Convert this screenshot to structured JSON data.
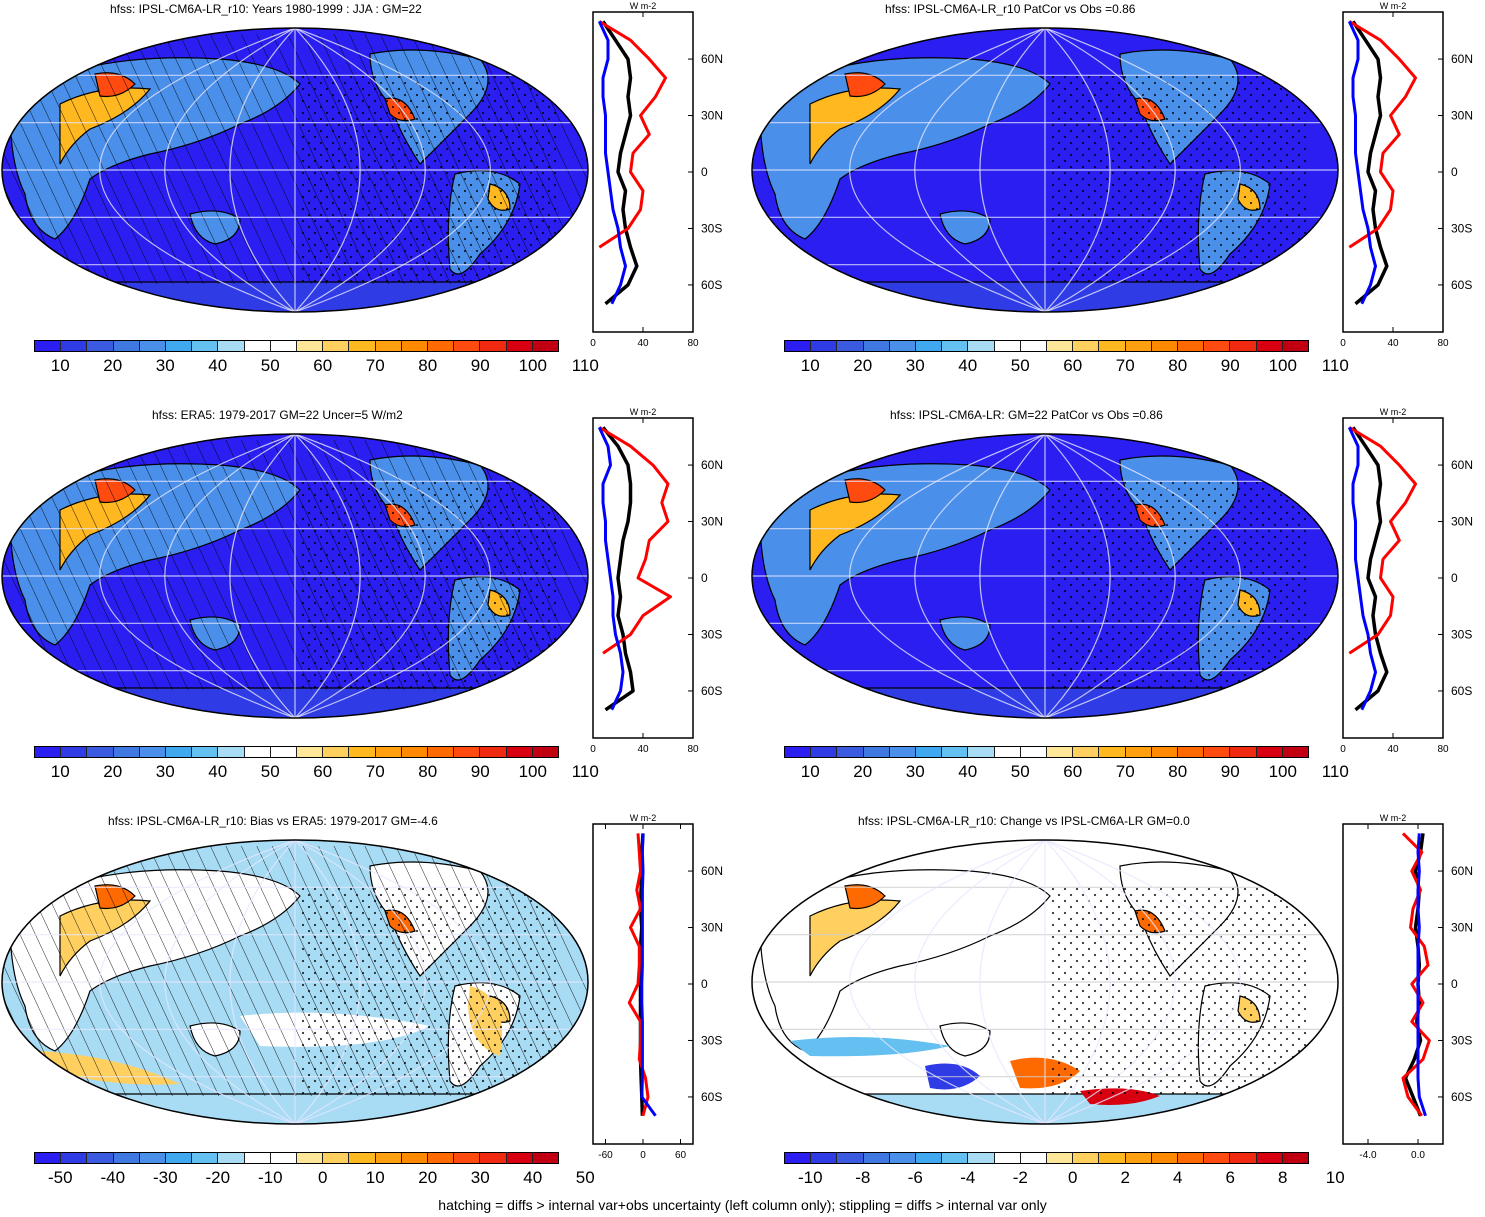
{
  "panels": [
    {
      "id": "p1",
      "title": "hfss: IPSL-CM6A-LR_r10: Years 1980-1999 : JJA : GM=22",
      "colorbar": {
        "colors": [
          "#2a1ef0",
          "#2f3ce6",
          "#3a5ae0",
          "#3f78e0",
          "#4a90ea",
          "#3fa8ee",
          "#63c0f0",
          "#a8dcf4",
          "#ffffff",
          "#ffffff",
          "#ffe79a",
          "#ffd060",
          "#ffb820",
          "#ffa010",
          "#ff8a00",
          "#ff6a00",
          "#ff4a10",
          "#f02a10",
          "#d80010",
          "#c00010"
        ],
        "labels": [
          "10",
          "20",
          "30",
          "40",
          "50",
          "60",
          "70",
          "80",
          "90",
          "100",
          "110"
        ]
      },
      "profile": {
        "unit": "W m-2",
        "xticks": [
          "0",
          "40",
          "80"
        ],
        "xrange": [
          0,
          80
        ],
        "lat_ticks": [
          "60N",
          "30N",
          "0",
          "30S",
          "60S"
        ]
      },
      "style": {
        "ocean": "#2a1ef0",
        "hatch": true,
        "stipple": true,
        "bias": false
      }
    },
    {
      "id": "p2",
      "title": "hfss: IPSL-CM6A-LR_r10 PatCor vs Obs =0.86",
      "colorbar": {
        "colors": [
          "#2a1ef0",
          "#2f3ce6",
          "#3a5ae0",
          "#3f78e0",
          "#4a90ea",
          "#3fa8ee",
          "#63c0f0",
          "#a8dcf4",
          "#ffffff",
          "#ffffff",
          "#ffe79a",
          "#ffd060",
          "#ffb820",
          "#ffa010",
          "#ff8a00",
          "#ff6a00",
          "#ff4a10",
          "#f02a10",
          "#d80010",
          "#c00010"
        ],
        "labels": [
          "10",
          "20",
          "30",
          "40",
          "50",
          "60",
          "70",
          "80",
          "90",
          "100",
          "110"
        ]
      },
      "profile": {
        "unit": "W m-2",
        "xticks": [
          "0",
          "40",
          "80"
        ],
        "xrange": [
          0,
          80
        ],
        "lat_ticks": [
          "60N",
          "30N",
          "0",
          "30S",
          "60S"
        ]
      },
      "style": {
        "ocean": "#2a1ef0",
        "hatch": false,
        "stipple": true,
        "bias": false
      }
    },
    {
      "id": "p3",
      "title": "hfss: ERA5: 1979-2017 GM=22 Uncer=5 W/m2",
      "colorbar": {
        "colors": [
          "#2a1ef0",
          "#2f3ce6",
          "#3a5ae0",
          "#3f78e0",
          "#4a90ea",
          "#3fa8ee",
          "#63c0f0",
          "#a8dcf4",
          "#ffffff",
          "#ffffff",
          "#ffe79a",
          "#ffd060",
          "#ffb820",
          "#ffa010",
          "#ff8a00",
          "#ff6a00",
          "#ff4a10",
          "#f02a10",
          "#d80010",
          "#c00010"
        ],
        "labels": [
          "10",
          "20",
          "30",
          "40",
          "50",
          "60",
          "70",
          "80",
          "90",
          "100",
          "110"
        ]
      },
      "profile": {
        "unit": "W m-2",
        "xticks": [
          "0",
          "40",
          "80"
        ],
        "xrange": [
          0,
          80
        ],
        "lat_ticks": [
          "60N",
          "30N",
          "0",
          "30S",
          "60S"
        ]
      },
      "style": {
        "ocean": "#2a1ef0",
        "hatch": true,
        "stipple": true,
        "bias": false
      }
    },
    {
      "id": "p4",
      "title": "hfss: IPSL-CM6A-LR: GM=22 PatCor vs Obs =0.86",
      "colorbar": {
        "colors": [
          "#2a1ef0",
          "#2f3ce6",
          "#3a5ae0",
          "#3f78e0",
          "#4a90ea",
          "#3fa8ee",
          "#63c0f0",
          "#a8dcf4",
          "#ffffff",
          "#ffffff",
          "#ffe79a",
          "#ffd060",
          "#ffb820",
          "#ffa010",
          "#ff8a00",
          "#ff6a00",
          "#ff4a10",
          "#f02a10",
          "#d80010",
          "#c00010"
        ],
        "labels": [
          "10",
          "20",
          "30",
          "40",
          "50",
          "60",
          "70",
          "80",
          "90",
          "100",
          "110"
        ]
      },
      "profile": {
        "unit": "W m-2",
        "xticks": [
          "0",
          "40",
          "80"
        ],
        "xrange": [
          0,
          80
        ],
        "lat_ticks": [
          "60N",
          "30N",
          "0",
          "30S",
          "60S"
        ]
      },
      "style": {
        "ocean": "#2a1ef0",
        "hatch": false,
        "stipple": true,
        "bias": false
      }
    },
    {
      "id": "p5",
      "title": "hfss: IPSL-CM6A-LR_r10: Bias vs ERA5: 1979-2017 GM=-4.6",
      "colorbar": {
        "colors": [
          "#2a1ef0",
          "#2f3ce6",
          "#3a5ae0",
          "#3f78e0",
          "#4a90ea",
          "#3fa8ee",
          "#63c0f0",
          "#a8dcf4",
          "#ffffff",
          "#ffffff",
          "#ffe79a",
          "#ffd060",
          "#ffb820",
          "#ffa010",
          "#ff8a00",
          "#ff6a00",
          "#ff4a10",
          "#f02a10",
          "#d80010",
          "#c00010"
        ],
        "labels": [
          "-50",
          "-40",
          "-30",
          "-20",
          "-10",
          "0",
          "10",
          "20",
          "30",
          "40",
          "50"
        ]
      },
      "profile": {
        "unit": "W m-2",
        "xticks": [
          "-60",
          "0",
          "60"
        ],
        "xrange": [
          -80,
          80
        ],
        "lat_ticks": [
          "60N",
          "30N",
          "0",
          "30S",
          "60S"
        ]
      },
      "style": {
        "ocean": "#a8dcf4",
        "hatch": true,
        "stipple": true,
        "bias": true
      }
    },
    {
      "id": "p6",
      "title": "hfss: IPSL-CM6A-LR_r10: Change vs IPSL-CM6A-LR GM=0.0",
      "colorbar": {
        "colors": [
          "#2a1ef0",
          "#2f3ce6",
          "#3a5ae0",
          "#3f78e0",
          "#4a90ea",
          "#3fa8ee",
          "#63c0f0",
          "#a8dcf4",
          "#ffffff",
          "#ffffff",
          "#ffe79a",
          "#ffd060",
          "#ffb820",
          "#ffa010",
          "#ff8a00",
          "#ff6a00",
          "#ff4a10",
          "#f02a10",
          "#d80010",
          "#c00010"
        ],
        "labels": [
          "-10",
          "-8",
          "-6",
          "-4",
          "-2",
          "0",
          "2",
          "4",
          "6",
          "8",
          "10"
        ]
      },
      "profile": {
        "unit": "W m-2",
        "xticks": [
          "-4.0",
          "0.0"
        ],
        "xrange": [
          -6,
          2
        ],
        "lat_ticks": [
          "60N",
          "30N",
          "0",
          "30S",
          "60S"
        ]
      },
      "style": {
        "ocean": "#ffffff",
        "hatch": false,
        "stipple": true,
        "bias": true
      }
    }
  ],
  "footnote": "hatching = diffs > internal var+obs uncertainty (left column only); stippling = diffs > internal var only",
  "chart_data": [
    {
      "type": "line",
      "title": "hfss: IPSL-CM6A-LR_r10: Years 1980-1999 : JJA : GM=22",
      "xlabel": "W m-2",
      "ylabel": "",
      "xlim": [
        0,
        80
      ],
      "lat": [
        80,
        70,
        60,
        50,
        40,
        30,
        20,
        10,
        0,
        -10,
        -20,
        -30,
        -40,
        -50,
        -60,
        -70
      ],
      "series": [
        {
          "color": "black",
          "values": [
            8,
            18,
            28,
            30,
            28,
            30,
            26,
            22,
            20,
            26,
            24,
            26,
            30,
            35,
            28,
            10
          ]
        },
        {
          "color": "red",
          "values": [
            5,
            30,
            45,
            58,
            50,
            38,
            45,
            32,
            30,
            40,
            38,
            28,
            5,
            null,
            null,
            null
          ]
        },
        {
          "color": "blue",
          "values": [
            5,
            12,
            12,
            8,
            8,
            10,
            10,
            10,
            12,
            14,
            16,
            20,
            22,
            26,
            22,
            15
          ]
        }
      ]
    },
    {
      "type": "line",
      "title": "hfss: IPSL-CM6A-LR_r10 PatCor vs Obs =0.86",
      "xlabel": "W m-2",
      "ylabel": "",
      "xlim": [
        0,
        80
      ],
      "lat": [
        80,
        70,
        60,
        50,
        40,
        30,
        20,
        10,
        0,
        -10,
        -20,
        -30,
        -40,
        -50,
        -60,
        -70
      ],
      "series": [
        {
          "color": "black",
          "values": [
            8,
            18,
            28,
            30,
            28,
            30,
            26,
            22,
            20,
            26,
            24,
            26,
            30,
            35,
            28,
            10
          ]
        },
        {
          "color": "red",
          "values": [
            5,
            30,
            45,
            58,
            50,
            38,
            45,
            32,
            30,
            40,
            38,
            28,
            5,
            null,
            null,
            null
          ]
        },
        {
          "color": "blue",
          "values": [
            5,
            12,
            12,
            8,
            8,
            10,
            10,
            10,
            12,
            14,
            16,
            20,
            22,
            26,
            22,
            15
          ]
        }
      ]
    },
    {
      "type": "line",
      "title": "hfss: ERA5: 1979-2017 GM=22 Uncer=5 W/m2",
      "xlabel": "W m-2",
      "ylabel": "",
      "xlim": [
        0,
        80
      ],
      "lat": [
        80,
        70,
        60,
        50,
        40,
        30,
        20,
        10,
        0,
        -10,
        -20,
        -30,
        -40,
        -50,
        -60,
        -70
      ],
      "series": [
        {
          "color": "black",
          "values": [
            8,
            20,
            28,
            30,
            30,
            28,
            24,
            22,
            20,
            22,
            20,
            24,
            26,
            30,
            32,
            10
          ]
        },
        {
          "color": "red",
          "values": [
            5,
            30,
            48,
            60,
            55,
            60,
            45,
            42,
            36,
            62,
            40,
            30,
            8,
            null,
            null,
            null
          ]
        },
        {
          "color": "blue",
          "values": [
            5,
            12,
            14,
            8,
            8,
            10,
            10,
            12,
            14,
            16,
            16,
            18,
            22,
            24,
            22,
            15
          ]
        }
      ]
    },
    {
      "type": "line",
      "title": "hfss: IPSL-CM6A-LR: GM=22 PatCor vs Obs =0.86",
      "xlabel": "W m-2",
      "ylabel": "",
      "xlim": [
        0,
        80
      ],
      "lat": [
        80,
        70,
        60,
        50,
        40,
        30,
        20,
        10,
        0,
        -10,
        -20,
        -30,
        -40,
        -50,
        -60,
        -70
      ],
      "series": [
        {
          "color": "black",
          "values": [
            8,
            18,
            28,
            30,
            28,
            30,
            26,
            22,
            20,
            26,
            24,
            26,
            30,
            35,
            28,
            10
          ]
        },
        {
          "color": "red",
          "values": [
            5,
            30,
            45,
            58,
            50,
            38,
            45,
            32,
            30,
            40,
            38,
            28,
            5,
            null,
            null,
            null
          ]
        },
        {
          "color": "blue",
          "values": [
            5,
            12,
            12,
            8,
            8,
            10,
            10,
            10,
            12,
            14,
            16,
            20,
            22,
            26,
            22,
            15
          ]
        }
      ]
    },
    {
      "type": "line",
      "title": "hfss: IPSL-CM6A-LR_r10: Bias vs ERA5: 1979-2017 GM=-4.6",
      "xlabel": "W m-2",
      "ylabel": "",
      "xlim": [
        -80,
        80
      ],
      "lat": [
        80,
        70,
        60,
        50,
        40,
        30,
        20,
        10,
        0,
        -10,
        -20,
        -30,
        -40,
        -50,
        -60,
        -70
      ],
      "series": [
        {
          "color": "black",
          "values": [
            0,
            -2,
            -2,
            -3,
            -4,
            -2,
            -4,
            -5,
            -4,
            -4,
            -4,
            -4,
            -4,
            -3,
            -2,
            -1
          ]
        },
        {
          "color": "red",
          "values": [
            -8,
            -6,
            -4,
            -10,
            -4,
            -20,
            -6,
            -6,
            -8,
            -22,
            -4,
            -4,
            -6,
            4,
            8,
            0
          ]
        },
        {
          "color": "blue",
          "values": [
            0,
            -1,
            0,
            -1,
            -1,
            -1,
            -1,
            -1,
            -2,
            -2,
            -1,
            -1,
            -1,
            -1,
            -2,
            20
          ]
        }
      ]
    },
    {
      "type": "line",
      "title": "hfss: IPSL-CM6A-LR_r10: Change vs IPSL-CM6A-LR GM=0.0",
      "xlabel": "W m-2",
      "ylabel": "",
      "xlim": [
        -6,
        2
      ],
      "lat": [
        80,
        70,
        60,
        50,
        40,
        30,
        20,
        10,
        0,
        -10,
        -20,
        -30,
        -40,
        -50,
        -60,
        -70
      ],
      "series": [
        {
          "color": "black",
          "values": [
            0.4,
            0.2,
            -0.2,
            0.1,
            0.0,
            -0.2,
            0.0,
            0.1,
            0.0,
            0.1,
            -0.1,
            0.2,
            -0.3,
            -1.0,
            -0.4,
            0.2
          ]
        },
        {
          "color": "red",
          "values": [
            -1.2,
            0.3,
            -0.5,
            0.2,
            -0.4,
            -0.6,
            0.5,
            0.8,
            -0.5,
            0.4,
            -0.5,
            0.9,
            0.4,
            -1.2,
            -0.8,
            0.3
          ]
        },
        {
          "color": "blue",
          "values": [
            0.1,
            0.0,
            0.1,
            0.0,
            0.0,
            0.1,
            0.0,
            0.0,
            0.0,
            0.0,
            0.0,
            0.0,
            0.0,
            0.0,
            0.1,
            0.6
          ]
        }
      ]
    }
  ]
}
